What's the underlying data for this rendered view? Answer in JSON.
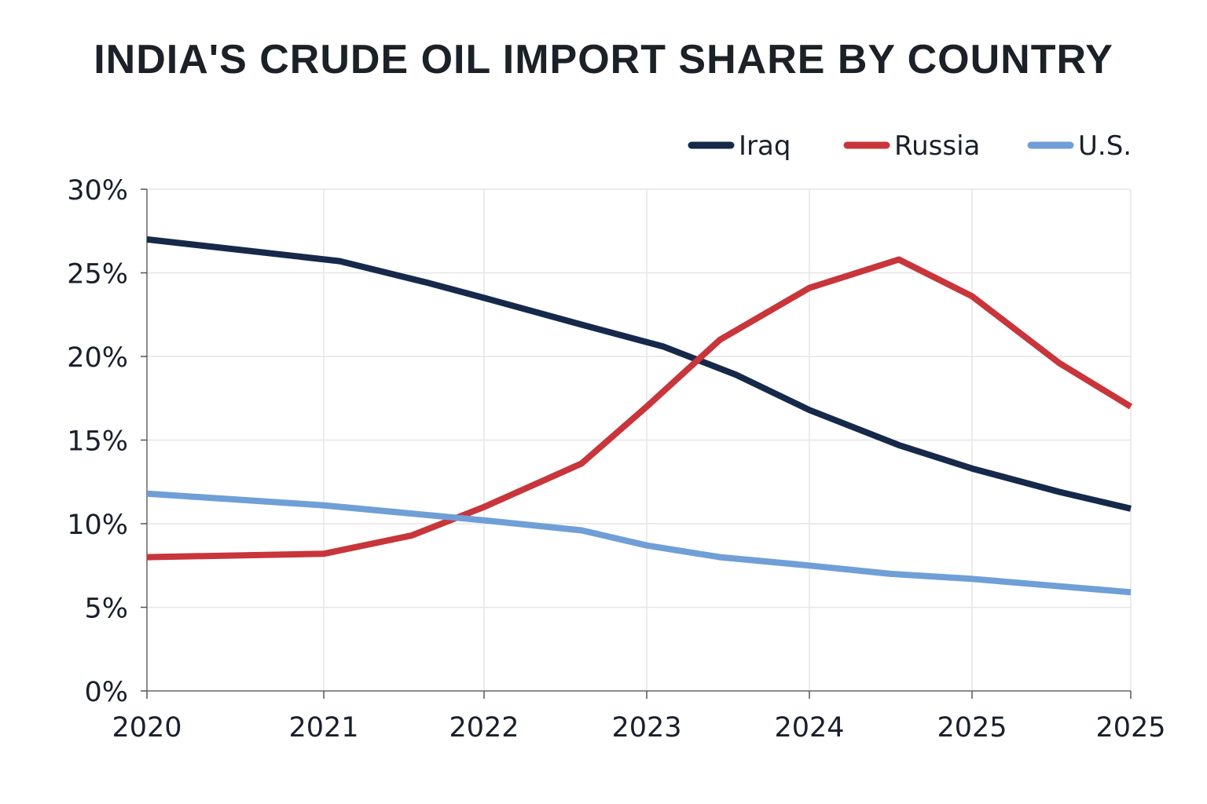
{
  "chart_data": {
    "type": "line",
    "title": "INDIA'S CRUDE OIL IMPORT SHARE BY COUNTRY",
    "xlabel": "",
    "ylabel": "",
    "x": [
      2020,
      2021,
      2022,
      2023,
      2024,
      2025,
      2025
    ],
    "x_tick_labels": [
      "2020",
      "2021",
      "2022",
      "2023",
      "2024",
      "2025",
      "2025"
    ],
    "y_ticks": [
      0,
      5,
      10,
      15,
      20,
      25,
      30
    ],
    "y_tick_labels": [
      "0%",
      "5%",
      "10%",
      "15%",
      "20%",
      "25%",
      "30%"
    ],
    "ylim": [
      0,
      30
    ],
    "grid": true,
    "legend_position": "top-right",
    "series": [
      {
        "name": "Iraq",
        "color": "#16294a",
        "points": [
          [
            0,
            27.0
          ],
          [
            1.1,
            25.7
          ],
          [
            1.65,
            24.4
          ],
          [
            2.0,
            23.5
          ],
          [
            2.6,
            21.9
          ],
          [
            3.1,
            20.6
          ],
          [
            3.55,
            18.9
          ],
          [
            4.0,
            16.8
          ],
          [
            4.55,
            14.7
          ],
          [
            5.0,
            13.3
          ],
          [
            5.55,
            11.9
          ],
          [
            6.0,
            10.9
          ]
        ]
      },
      {
        "name": "Russia",
        "color": "#c8353b",
        "points": [
          [
            0,
            8.0
          ],
          [
            1.0,
            8.2
          ],
          [
            1.55,
            9.3
          ],
          [
            2.0,
            11.0
          ],
          [
            2.6,
            13.6
          ],
          [
            3.0,
            17.0
          ],
          [
            3.45,
            21.0
          ],
          [
            4.0,
            24.1
          ],
          [
            4.55,
            25.8
          ],
          [
            5.0,
            23.6
          ],
          [
            5.55,
            19.6
          ],
          [
            6.0,
            17.0
          ]
        ]
      },
      {
        "name": "U.S.",
        "color": "#6f9fd6",
        "points": [
          [
            0,
            11.8
          ],
          [
            1.0,
            11.1
          ],
          [
            2.0,
            10.2
          ],
          [
            2.6,
            9.6
          ],
          [
            3.0,
            8.7
          ],
          [
            3.45,
            8.0
          ],
          [
            4.0,
            7.5
          ],
          [
            4.5,
            7.0
          ],
          [
            5.0,
            6.7
          ],
          [
            5.5,
            6.3
          ],
          [
            6.0,
            5.9
          ]
        ]
      }
    ]
  }
}
